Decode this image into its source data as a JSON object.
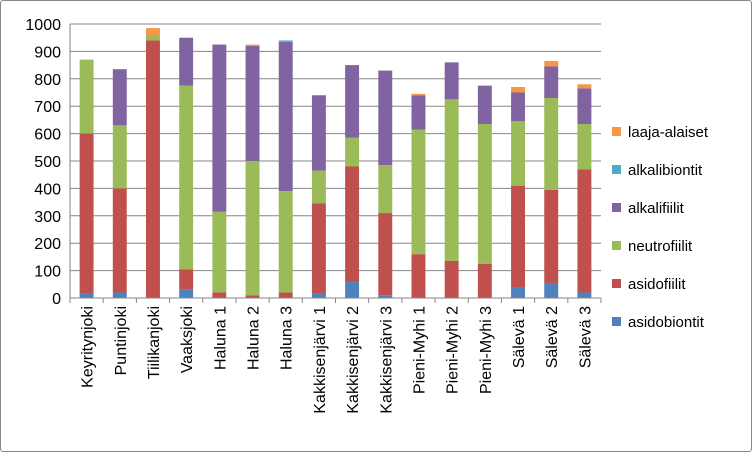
{
  "chart_data": {
    "type": "bar",
    "stacked": true,
    "title": "",
    "xlabel": "",
    "ylabel": "",
    "ylim": [
      0,
      1000
    ],
    "yticks": [
      0,
      100,
      200,
      300,
      400,
      500,
      600,
      700,
      800,
      900,
      1000
    ],
    "grid": true,
    "legend_position": "right",
    "categories": [
      "Keyritynjoki",
      "Puntinjoki",
      "Tiilikanjoki",
      "Vaaksjoki",
      "Haluna 1",
      "Haluna 2",
      "Haluna 3",
      "Kakkisenjärvi 1",
      "Kakkisenjärvi 2",
      "Kakkisenjärvi 3",
      "Pieni-Myhi 1",
      "Pieni-Myhi 2",
      "Pieni-Myhi 3",
      "Sälevä 1",
      "Sälevä 2",
      "Sälevä 3"
    ],
    "series": [
      {
        "name": "asidobiontit",
        "color": "#4f81bd",
        "values": [
          15,
          20,
          0,
          30,
          0,
          0,
          0,
          15,
          60,
          10,
          0,
          0,
          0,
          40,
          55,
          20
        ]
      },
      {
        "name": "asidofiilit",
        "color": "#c0504d",
        "values": [
          585,
          380,
          940,
          75,
          20,
          10,
          20,
          330,
          420,
          300,
          160,
          135,
          125,
          370,
          340,
          450
        ]
      },
      {
        "name": "neutrofiilit",
        "color": "#9bbb59",
        "values": [
          270,
          230,
          20,
          670,
          295,
          490,
          370,
          120,
          105,
          175,
          455,
          590,
          510,
          235,
          335,
          165
        ]
      },
      {
        "name": "alkalifiilit",
        "color": "#8064a2",
        "values": [
          0,
          205,
          0,
          175,
          610,
          420,
          545,
          275,
          265,
          345,
          125,
          135,
          140,
          105,
          115,
          130
        ]
      },
      {
        "name": "alkalibiontit",
        "color": "#4bacc6",
        "values": [
          0,
          0,
          0,
          0,
          0,
          0,
          5,
          0,
          0,
          0,
          0,
          0,
          0,
          0,
          0,
          0
        ]
      },
      {
        "name": "laaja-alaiset",
        "color": "#f79646",
        "values": [
          0,
          0,
          25,
          0,
          0,
          5,
          0,
          0,
          0,
          0,
          5,
          0,
          0,
          20,
          20,
          15
        ]
      }
    ]
  }
}
